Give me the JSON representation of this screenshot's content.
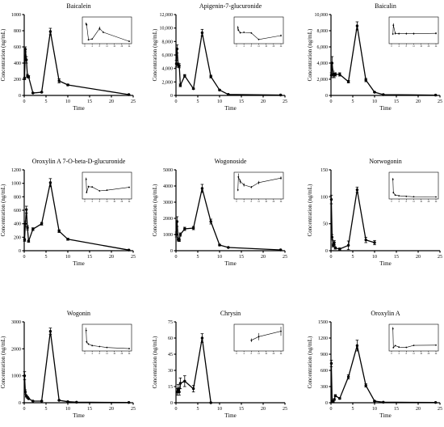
{
  "figure": {
    "xlabel": "Time",
    "ylabel": "Concentration (ng/mL)"
  },
  "chart_data": [
    {
      "type": "line",
      "title": "Baicalein",
      "xlabel": "Time",
      "ylabel": "Concentration (ng/mL)",
      "xlim": [
        0,
        25
      ],
      "ylim": [
        0,
        1000
      ],
      "xticks": [
        0,
        5,
        10,
        15,
        20,
        25
      ],
      "yticks": [
        0,
        200,
        400,
        600,
        800,
        1000
      ],
      "ytick_labels": [
        "0",
        "200",
        "400",
        "600",
        "800",
        "1000"
      ],
      "x": [
        0.083,
        0.25,
        0.5,
        0.75,
        1,
        2,
        4,
        6,
        8,
        10,
        24
      ],
      "y": [
        210,
        570,
        440,
        240,
        230,
        30,
        40,
        790,
        180,
        130,
        10
      ],
      "err": [
        15,
        30,
        40,
        20,
        15,
        5,
        5,
        40,
        25,
        10,
        3
      ],
      "inset": {
        "x": [
          0.75,
          1,
          2,
          4,
          8,
          10,
          24
        ],
        "y": [
          240,
          230,
          30,
          40,
          180,
          130,
          10
        ],
        "err": [
          20,
          15,
          5,
          5,
          25,
          10,
          3
        ],
        "ylim": [
          0,
          300
        ],
        "xticks": [
          0,
          4,
          8,
          12,
          16,
          20,
          24
        ]
      }
    },
    {
      "type": "line",
      "title": "Apigenin-7-glucuronide",
      "xlabel": "Time",
      "ylabel": "Concentration (ng/mL)",
      "xlim": [
        0,
        25
      ],
      "ylim": [
        0,
        12000
      ],
      "xticks": [
        0,
        5,
        10,
        15,
        20,
        25
      ],
      "yticks": [
        0,
        2000,
        4000,
        6000,
        8000,
        10000,
        12000
      ],
      "ytick_labels": [
        "0",
        "2,000",
        "4,000",
        "6,000",
        "8,000",
        "10,000",
        "12,000"
      ],
      "x": [
        0.083,
        0.25,
        0.5,
        0.75,
        1,
        2,
        4,
        6,
        8,
        10,
        12,
        24
      ],
      "y": [
        4700,
        6900,
        4500,
        4400,
        1500,
        2900,
        1000,
        9300,
        2800,
        800,
        150,
        60
      ],
      "err": [
        500,
        600,
        300,
        300,
        200,
        200,
        100,
        500,
        200,
        80,
        30,
        10
      ],
      "inset": {
        "x": [
          0.75,
          1,
          2,
          4,
          8,
          12,
          24
        ],
        "y": [
          4400,
          3700,
          2900,
          3000,
          2800,
          800,
          2000
        ],
        "err": [
          600,
          300,
          300,
          200,
          200,
          100,
          300
        ],
        "ylim": [
          0,
          7000
        ],
        "xticks": [
          0,
          4,
          8,
          12,
          16,
          20,
          24
        ]
      }
    },
    {
      "type": "line",
      "title": "Baicalin",
      "xlabel": "Time",
      "ylabel": "Concentration (ng/mL)",
      "xlim": [
        0,
        25
      ],
      "ylim": [
        0,
        10000
      ],
      "xticks": [
        0,
        5,
        10,
        15,
        20,
        25
      ],
      "yticks": [
        0,
        2000,
        4000,
        6000,
        8000,
        10000
      ],
      "ytick_labels": [
        "0",
        "2,000",
        "4,000",
        "6,000",
        "8,000",
        "10,000"
      ],
      "x": [
        0.083,
        0.25,
        0.5,
        0.75,
        1,
        2,
        4,
        6,
        8,
        10,
        12,
        24
      ],
      "y": [
        2500,
        4000,
        2600,
        2500,
        2600,
        2600,
        1700,
        8600,
        1900,
        400,
        100,
        40
      ],
      "err": [
        300,
        800,
        400,
        300,
        200,
        200,
        150,
        500,
        200,
        60,
        30,
        10
      ],
      "inset": {
        "x": [
          0.75,
          1,
          2,
          4,
          8,
          12,
          24
        ],
        "y": [
          2500,
          5200,
          2700,
          2600,
          2600,
          2600,
          2700
        ],
        "err": [
          300,
          600,
          400,
          300,
          300,
          300,
          300
        ],
        "ylim": [
          0,
          7000
        ],
        "xticks": [
          0,
          4,
          8,
          12,
          16,
          20,
          24
        ]
      }
    },
    {
      "type": "line",
      "title": "Oroxylin A 7-O-beta-D-glucuronide",
      "xlabel": "Time",
      "ylabel": "Concentration (ng/mL)",
      "xlim": [
        0,
        25
      ],
      "ylim": [
        0,
        1200
      ],
      "xticks": [
        0,
        5,
        10,
        15,
        20,
        25
      ],
      "yticks": [
        0,
        200,
        400,
        600,
        800,
        1000,
        1200
      ],
      "ytick_labels": [
        "0",
        "200",
        "400",
        "600",
        "800",
        "1000",
        "1200"
      ],
      "x": [
        0.083,
        0.25,
        0.5,
        0.75,
        1,
        2,
        4,
        6,
        8,
        10,
        24
      ],
      "y": [
        160,
        400,
        610,
        340,
        140,
        320,
        400,
        1010,
        290,
        170,
        10
      ],
      "err": [
        20,
        40,
        50,
        30,
        15,
        20,
        20,
        60,
        20,
        15,
        3
      ],
      "inset": {
        "x": [
          0.75,
          1,
          2,
          4,
          8,
          12,
          24
        ],
        "y": [
          560,
          150,
          330,
          320,
          200,
          220,
          310
        ],
        "err": [
          50,
          20,
          30,
          20,
          20,
          20,
          20
        ],
        "ylim": [
          0,
          700
        ],
        "xticks": [
          0,
          4,
          8,
          12,
          16,
          20,
          24
        ]
      }
    },
    {
      "type": "line",
      "title": "Wogonoside",
      "xlabel": "Time",
      "ylabel": "Concentration (ng/mL)",
      "xlim": [
        0,
        25
      ],
      "ylim": [
        0,
        5000
      ],
      "xticks": [
        0,
        5,
        10,
        15,
        20,
        25
      ],
      "yticks": [
        0,
        1000,
        2000,
        3000,
        4000,
        5000
      ],
      "ytick_labels": [
        "0",
        "1000",
        "2000",
        "3000",
        "4000",
        "5000"
      ],
      "x": [
        0.083,
        0.25,
        0.5,
        0.75,
        1,
        2,
        4,
        6,
        8,
        10,
        12,
        24
      ],
      "y": [
        1000,
        1800,
        700,
        650,
        1000,
        1350,
        1400,
        3850,
        1800,
        350,
        200,
        50
      ],
      "err": [
        150,
        300,
        100,
        80,
        100,
        100,
        100,
        250,
        150,
        50,
        20,
        10
      ],
      "inset": {
        "x": [
          0.75,
          1,
          2,
          4,
          8,
          12,
          24
        ],
        "y": [
          650,
          1800,
          1400,
          1100,
          900,
          1300,
          1700
        ],
        "err": [
          100,
          300,
          200,
          150,
          100,
          150,
          150
        ],
        "ylim": [
          0,
          2000
        ],
        "xticks": [
          0,
          4,
          8,
          12,
          16,
          20,
          24
        ]
      }
    },
    {
      "type": "line",
      "title": "Norwogonin",
      "xlabel": "Time",
      "ylabel": "Concentration (ng/mL)",
      "xlim": [
        0,
        25
      ],
      "ylim": [
        0,
        150
      ],
      "xticks": [
        0,
        5,
        10,
        15,
        20,
        25
      ],
      "yticks": [
        0,
        50,
        100,
        150
      ],
      "ytick_labels": [
        "0",
        "50",
        "100",
        "150"
      ],
      "x": [
        0.083,
        0.25,
        0.5,
        0.75,
        1,
        2,
        4,
        6,
        8,
        10
      ],
      "y": [
        95,
        25,
        10,
        15,
        5,
        3,
        10,
        113,
        20,
        15
      ],
      "err": [
        8,
        5,
        3,
        4,
        2,
        2,
        8,
        5,
        5,
        4
      ],
      "inset": {
        "x": [
          0.75,
          1,
          2,
          4,
          8,
          12,
          24
        ],
        "y": [
          95,
          25,
          12,
          8,
          5,
          3,
          2
        ],
        "err": [
          8,
          5,
          3,
          3,
          2,
          2,
          1
        ],
        "ylim": [
          0,
          120
        ],
        "xticks": [
          0,
          4,
          8,
          12,
          16,
          20,
          24
        ]
      }
    },
    {
      "type": "line",
      "title": "Wogonin",
      "xlabel": "Time",
      "ylabel": "Concentration (ng/mL)",
      "xlim": [
        0,
        25
      ],
      "ylim": [
        0,
        3000
      ],
      "xticks": [
        0,
        5,
        10,
        15,
        20,
        25
      ],
      "yticks": [
        0,
        1000,
        2000,
        3000
      ],
      "ytick_labels": [
        "0",
        "1000",
        "2000",
        "3000"
      ],
      "x": [
        0.083,
        0.25,
        0.5,
        0.75,
        1,
        2,
        4,
        6,
        8,
        10,
        12,
        24
      ],
      "y": [
        1000,
        400,
        250,
        200,
        150,
        60,
        60,
        2650,
        90,
        40,
        20,
        10
      ],
      "err": [
        150,
        80,
        40,
        30,
        20,
        10,
        10,
        120,
        15,
        8,
        5,
        3
      ],
      "inset": {
        "x": [
          0.75,
          1,
          2,
          4,
          8,
          12,
          24
        ],
        "y": [
          1000,
          400,
          280,
          200,
          150,
          100,
          40
        ],
        "err": [
          150,
          80,
          40,
          30,
          20,
          15,
          8
        ],
        "ylim": [
          0,
          1200
        ],
        "xticks": [
          0,
          4,
          8,
          12,
          16,
          20,
          24
        ]
      }
    },
    {
      "type": "line",
      "title": "Chrysin",
      "xlabel": "Time",
      "ylabel": "Concentration (ng/mL)",
      "xlim": [
        0,
        25
      ],
      "ylim": [
        0,
        75
      ],
      "xticks": [
        0,
        5,
        10,
        15,
        20,
        25
      ],
      "yticks": [
        0,
        15,
        30,
        45,
        60,
        75
      ],
      "ytick_labels": [
        "0",
        "15",
        "30",
        "45",
        "60",
        "75"
      ],
      "x": [
        0.25,
        0.5,
        0.75,
        1,
        2,
        4,
        6,
        8
      ],
      "y": [
        10,
        13,
        10,
        18,
        20,
        13,
        60,
        0
      ],
      "err": [
        3,
        4,
        3,
        5,
        5,
        3,
        4,
        0
      ],
      "inset": {
        "x": [
          8,
          12,
          24
        ],
        "y": [
          10,
          14,
          20
        ],
        "err": [
          2,
          4,
          5
        ],
        "ylim": [
          0,
          25
        ],
        "xticks": [
          0,
          4,
          8,
          12,
          16,
          20,
          24
        ]
      }
    },
    {
      "type": "line",
      "title": "Oroxylin A",
      "xlabel": "Time",
      "ylabel": "Concentration (ng/mL)",
      "xlim": [
        0,
        25
      ],
      "ylim": [
        0,
        1500
      ],
      "xticks": [
        0,
        5,
        10,
        15,
        20,
        25
      ],
      "yticks": [
        0,
        300,
        600,
        900,
        1200,
        1500
      ],
      "ytick_labels": [
        "0",
        "300",
        "600",
        "900",
        "1200",
        "1500"
      ],
      "x": [
        0.083,
        0.25,
        0.5,
        0.75,
        1,
        2,
        4,
        6,
        8,
        10,
        12,
        24
      ],
      "y": [
        730,
        30,
        20,
        60,
        130,
        80,
        480,
        1060,
        320,
        30,
        10,
        5
      ],
      "err": [
        60,
        10,
        8,
        15,
        20,
        15,
        40,
        100,
        30,
        8,
        3,
        2
      ],
      "inset": {
        "x": [
          0.75,
          1,
          2,
          4,
          8,
          12,
          24
        ],
        "y": [
          730,
          60,
          130,
          80,
          70,
          140,
          150
        ],
        "err": [
          60,
          15,
          20,
          15,
          15,
          20,
          20
        ],
        "ylim": [
          0,
          800
        ],
        "xticks": [
          0,
          4,
          8,
          12,
          16,
          20,
          24
        ]
      }
    }
  ]
}
